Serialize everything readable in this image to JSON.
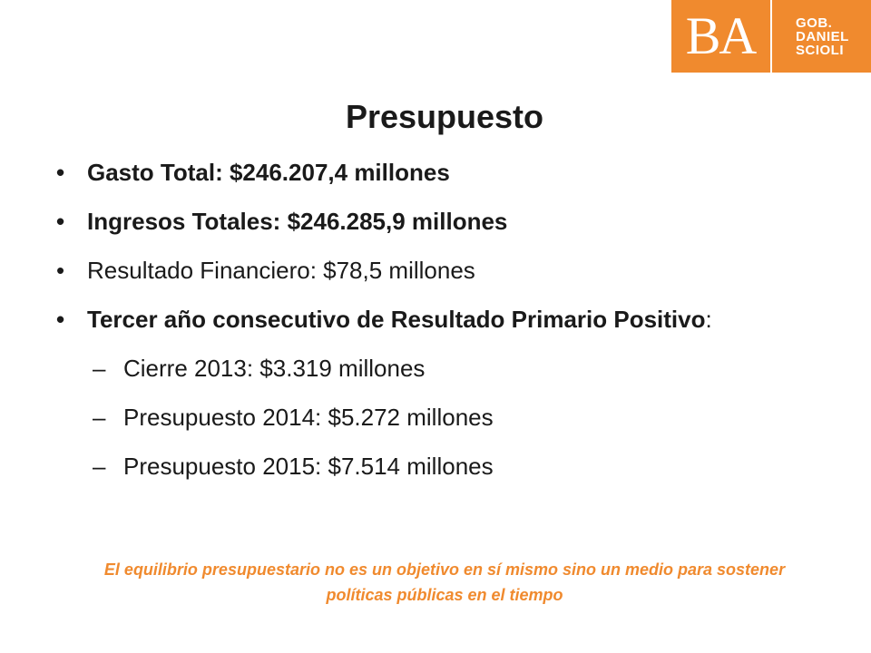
{
  "logo": {
    "mark": "BA",
    "lines": [
      "GOB.",
      "DANIEL",
      "SCIOLI"
    ],
    "color": "#f08a2e"
  },
  "title": "Presupuesto",
  "bullets": [
    {
      "text": "Gasto Total: $246.207,4 millones"
    },
    {
      "text": "Ingresos Totales: $246.285,9 millones"
    },
    {
      "text": "Resultado Financiero: $78,5 millones"
    },
    {
      "text": "Tercer año consecutivo de Resultado Primario Positivo",
      "suffix": ":"
    }
  ],
  "subbullets": [
    {
      "dash": "–",
      "text": "Cierre 2013: $3.319 millones"
    },
    {
      "dash": "–",
      "text": "Presupuesto 2014: $5.272 millones"
    },
    {
      "dash": "–",
      "text": "Presupuesto 2015: $7.514 millones"
    }
  ],
  "footer_note": "El equilibrio presupuestario no es un objetivo en sí mismo sino un medio para sostener políticas públicas en el tiempo"
}
